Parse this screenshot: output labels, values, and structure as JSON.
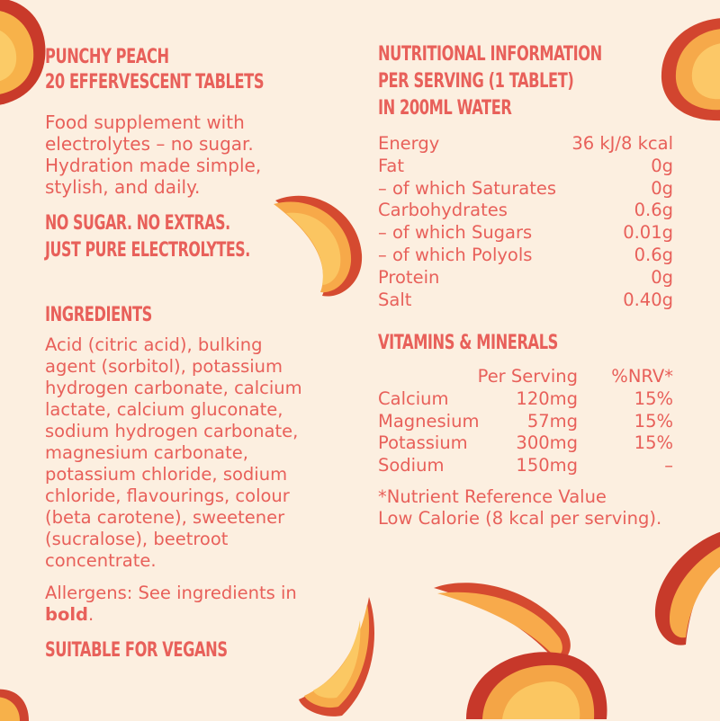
{
  "colors": {
    "background": "#FCEFE0",
    "accent": "#E8605A"
  },
  "product": {
    "title_line1": "PUNCHY PEACH",
    "title_line2": "20 EFFERVESCENT TABLETS",
    "description": "Food supplement with electrolytes – no sugar. Hydration made simple, stylish, and daily.",
    "tagline_line1": "NO SUGAR. NO EXTRAS.",
    "tagline_line2": "JUST PURE ELECTROLYTES."
  },
  "ingredients": {
    "heading": "INGREDIENTS",
    "text": "Acid (citric acid), bulking agent (sorbitol), potassium hydrogen carbonate, calcium lactate, calcium gluconate, sodium hydrogen carbonate, magnesium carbonate, potassium chloride, sodium chloride, flavourings, colour (beta carotene), sweetener (sucralose), beetroot concentrate.",
    "allergens_prefix": "Allergens: See ingredients in",
    "allergens_bold": "bold",
    "allergens_suffix": ".",
    "vegan": "SUITABLE FOR VEGANS"
  },
  "nutrition": {
    "heading_line1": "NUTRITIONAL INFORMATION",
    "heading_line2": "PER SERVING (1 TABLET)",
    "heading_line3": "IN 200ML WATER",
    "rows": [
      {
        "label": "Energy",
        "value": "36 kJ/8 kcal"
      },
      {
        "label": "Fat",
        "value": "0g"
      },
      {
        "label": "– of which Saturates",
        "value": "0g"
      },
      {
        "label": "Carbohydrates",
        "value": "0.6g"
      },
      {
        "label": "– of which Sugars",
        "value": "0.01g"
      },
      {
        "label": "– of which Polyols",
        "value": "0.6g"
      },
      {
        "label": "Protein",
        "value": "0g"
      },
      {
        "label": "Salt",
        "value": "0.40g"
      }
    ]
  },
  "vitamins": {
    "heading": "VITAMINS & MINERALS",
    "col_per_serving": "Per Serving",
    "col_nrv": "%NRV*",
    "rows": [
      {
        "name": "Calcium",
        "per_serving": "120mg",
        "nrv": "15%"
      },
      {
        "name": "Magnesium",
        "per_serving": "57mg",
        "nrv": "15%"
      },
      {
        "name": "Potassium",
        "per_serving": "300mg",
        "nrv": "15%"
      },
      {
        "name": "Sodium",
        "per_serving": "150mg",
        "nrv": "–"
      }
    ],
    "footnote_line1": "*Nutrient Reference Value",
    "footnote_line2": "Low Calorie (8 kcal per serving)."
  }
}
